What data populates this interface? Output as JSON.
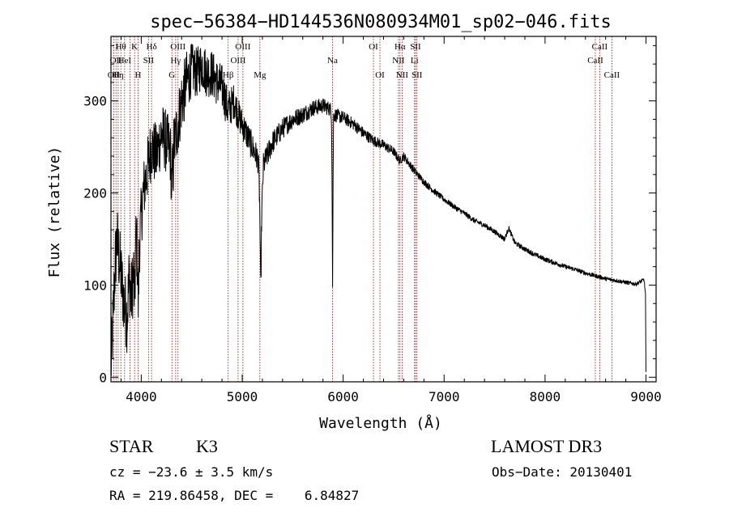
{
  "chart_data": {
    "type": "line",
    "title": "spec−56384−HD144536N080934M01_sp02−046.fits",
    "xlabel": "Wavelength (Å)",
    "ylabel": "Flux (relative)",
    "xlim": [
      3700,
      9100
    ],
    "ylim": [
      -5,
      370
    ],
    "x_ticks": [
      4000,
      5000,
      6000,
      7000,
      8000,
      9000
    ],
    "y_ticks": [
      0,
      100,
      200,
      300
    ],
    "grid": false,
    "legend": "none",
    "line_color": "#000000",
    "marker_color": "#8b0000",
    "spectrum_anchors": [
      [
        3700,
        5
      ],
      [
        3720,
        60
      ],
      [
        3740,
        120
      ],
      [
        3760,
        150
      ],
      [
        3780,
        130
      ],
      [
        3800,
        110
      ],
      [
        3830,
        80
      ],
      [
        3860,
        65
      ],
      [
        3880,
        110
      ],
      [
        3900,
        85
      ],
      [
        3930,
        120
      ],
      [
        3950,
        150
      ],
      [
        3970,
        120
      ],
      [
        3990,
        160
      ],
      [
        4020,
        200
      ],
      [
        4060,
        225
      ],
      [
        4100,
        250
      ],
      [
        4150,
        240
      ],
      [
        4200,
        265
      ],
      [
        4250,
        255
      ],
      [
        4300,
        240
      ],
      [
        4340,
        260
      ],
      [
        4400,
        300
      ],
      [
        4450,
        320
      ],
      [
        4500,
        335
      ],
      [
        4550,
        330
      ],
      [
        4600,
        340
      ],
      [
        4650,
        330
      ],
      [
        4700,
        330
      ],
      [
        4750,
        320
      ],
      [
        4800,
        315
      ],
      [
        4860,
        290
      ],
      [
        4920,
        300
      ],
      [
        4960,
        285
      ],
      [
        5000,
        275
      ],
      [
        5060,
        260
      ],
      [
        5100,
        250
      ],
      [
        5160,
        235
      ],
      [
        5185,
        150
      ],
      [
        5210,
        230
      ],
      [
        5300,
        255
      ],
      [
        5400,
        270
      ],
      [
        5500,
        280
      ],
      [
        5600,
        285
      ],
      [
        5700,
        292
      ],
      [
        5800,
        295
      ],
      [
        5890,
        290
      ],
      [
        5895,
        180
      ],
      [
        5905,
        285
      ],
      [
        6000,
        282
      ],
      [
        6100,
        275
      ],
      [
        6200,
        265
      ],
      [
        6300,
        257
      ],
      [
        6400,
        252
      ],
      [
        6500,
        245
      ],
      [
        6560,
        235
      ],
      [
        6600,
        240
      ],
      [
        6700,
        225
      ],
      [
        6800,
        212
      ],
      [
        6900,
        202
      ],
      [
        7000,
        193
      ],
      [
        7100,
        185
      ],
      [
        7200,
        178
      ],
      [
        7300,
        170
      ],
      [
        7400,
        165
      ],
      [
        7500,
        158
      ],
      [
        7600,
        150
      ],
      [
        7640,
        162
      ],
      [
        7700,
        146
      ],
      [
        7800,
        139
      ],
      [
        7900,
        133
      ],
      [
        8000,
        128
      ],
      [
        8100,
        124
      ],
      [
        8200,
        120
      ],
      [
        8300,
        117
      ],
      [
        8400,
        113
      ],
      [
        8500,
        110
      ],
      [
        8600,
        107
      ],
      [
        8700,
        105
      ],
      [
        8800,
        103
      ],
      [
        8900,
        101
      ],
      [
        8980,
        106
      ],
      [
        8995,
        90
      ],
      [
        9000,
        5
      ]
    ],
    "spectrum_noise": [
      [
        3700,
        40
      ],
      [
        3950,
        40
      ],
      [
        4000,
        35
      ],
      [
        4450,
        35
      ],
      [
        4500,
        28
      ],
      [
        4800,
        25
      ],
      [
        4950,
        18
      ],
      [
        5200,
        14
      ],
      [
        5500,
        10
      ],
      [
        6000,
        7
      ],
      [
        6500,
        5
      ],
      [
        7000,
        3
      ],
      [
        9000,
        2
      ]
    ],
    "dips": [
      {
        "x": 3935,
        "depth": 50
      },
      {
        "x": 3970,
        "depth": 40
      },
      {
        "x": 4300,
        "depth": 30
      },
      {
        "x": 5183,
        "depth": 60
      },
      {
        "x": 5893,
        "depth": 90
      }
    ],
    "line_markers": [
      {
        "x": 3727,
        "labels": [
          "",
          "",
          "OII"
        ]
      },
      {
        "x": 3750,
        "labels": [
          "",
          "OII",
          ""
        ]
      },
      {
        "x": 3771,
        "labels": [
          "",
          "",
          "Hη"
        ]
      },
      {
        "x": 3798,
        "labels": [
          "Hθ",
          "",
          ""
        ]
      },
      {
        "x": 3835,
        "labels": [
          "",
          "HeI",
          ""
        ]
      },
      {
        "x": 3889,
        "labels": [
          "",
          "",
          ""
        ]
      },
      {
        "x": 3934,
        "labels": [
          "K",
          "",
          ""
        ]
      },
      {
        "x": 3969,
        "labels": [
          "",
          "",
          "H"
        ]
      },
      {
        "x": 4072,
        "labels": [
          "",
          "SII",
          ""
        ]
      },
      {
        "x": 4102,
        "labels": [
          "Hδ",
          "",
          ""
        ]
      },
      {
        "x": 4304,
        "labels": [
          "",
          "",
          "G"
        ]
      },
      {
        "x": 4341,
        "labels": [
          "",
          "Hγ",
          ""
        ]
      },
      {
        "x": 4364,
        "labels": [
          "OIII",
          "",
          ""
        ]
      },
      {
        "x": 4861,
        "labels": [
          "",
          "",
          "Hβ"
        ]
      },
      {
        "x": 4959,
        "labels": [
          "",
          "OIII",
          ""
        ]
      },
      {
        "x": 5007,
        "labels": [
          "OIII",
          "",
          ""
        ]
      },
      {
        "x": 5175,
        "labels": [
          "",
          "",
          "Mg"
        ]
      },
      {
        "x": 5894,
        "labels": [
          "",
          "Na",
          ""
        ]
      },
      {
        "x": 6300,
        "labels": [
          "OI",
          "",
          ""
        ]
      },
      {
        "x": 6364,
        "labels": [
          "",
          "",
          "OI"
        ]
      },
      {
        "x": 6548,
        "labels": [
          "",
          "NII",
          ""
        ]
      },
      {
        "x": 6563,
        "labels": [
          "Hα",
          "",
          ""
        ]
      },
      {
        "x": 6584,
        "labels": [
          "",
          "",
          "NII"
        ]
      },
      {
        "x": 6707,
        "labels": [
          "",
          "Li",
          ""
        ]
      },
      {
        "x": 6717,
        "labels": [
          "SII",
          "",
          ""
        ]
      },
      {
        "x": 6731,
        "labels": [
          "",
          "",
          "SII"
        ]
      },
      {
        "x": 8498,
        "labels": [
          "",
          "CaII",
          ""
        ]
      },
      {
        "x": 8542,
        "labels": [
          "CaII",
          "",
          ""
        ]
      },
      {
        "x": 8662,
        "labels": [
          "",
          "",
          "CaII"
        ]
      }
    ]
  },
  "info": {
    "class_label": "STAR",
    "subclass": "K3",
    "survey": "LAMOST DR3",
    "cz_text": "cz = −23.6 ± 3.5 km/s",
    "obs_date_text": "Obs−Date: 20130401",
    "radec_text": "RA = 219.86458, DEC =    6.84827"
  }
}
